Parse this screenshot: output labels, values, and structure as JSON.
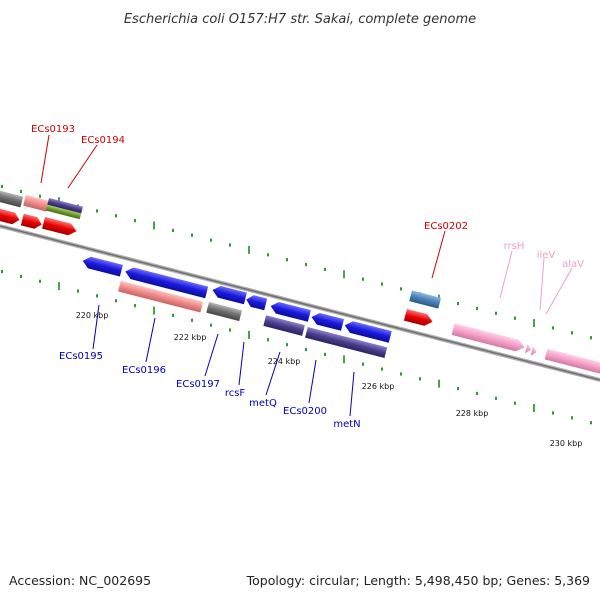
{
  "title": "Escherichia coli O157:H7 str. Sakai, complete genome",
  "footer": {
    "accession": "Accession: NC_002695",
    "summary": "Topology: circular; Length: 5,498,450 bp; Genes: 5,369"
  },
  "colors": {
    "backbone": "#8a8a8a",
    "tick": "#1f8a1f",
    "cds_blue": "#1a1adc",
    "cds_red": "#e80000",
    "cds_salmon": "#ef8a8a",
    "cds_grey": "#6e6e6e",
    "cds_purple": "#4a3c8c",
    "cds_olive": "#6e9a2a",
    "cds_steel": "#4a80b4",
    "rna_pink": "#f5a0c8",
    "label_red": "#d00000",
    "label_blue": "#0000b4",
    "label_pink": "#f0a0c8"
  },
  "scale": {
    "ticks": [
      {
        "label": "220 kbp",
        "kbp": 220
      },
      {
        "label": "222 kbp",
        "kbp": 222
      },
      {
        "label": "224 kbp",
        "kbp": 224
      },
      {
        "label": "226 kbp",
        "kbp": 226
      },
      {
        "label": "228 kbp",
        "kbp": 228
      },
      {
        "label": "230 kbp",
        "kbp": 230
      }
    ]
  },
  "labels": {
    "ECs0193": "ECs0193",
    "ECs0194": "ECs0194",
    "ECs0202": "ECs0202",
    "rrsH": "rrsH",
    "ileV": "ileV",
    "alaV": "alaV",
    "ECs0195": "ECs0195",
    "ECs0196": "ECs0196",
    "ECs0197": "ECs0197",
    "rcsF": "rcsF",
    "metQ": "metQ",
    "ECs0200": "ECs0200",
    "metN": "metN"
  }
}
